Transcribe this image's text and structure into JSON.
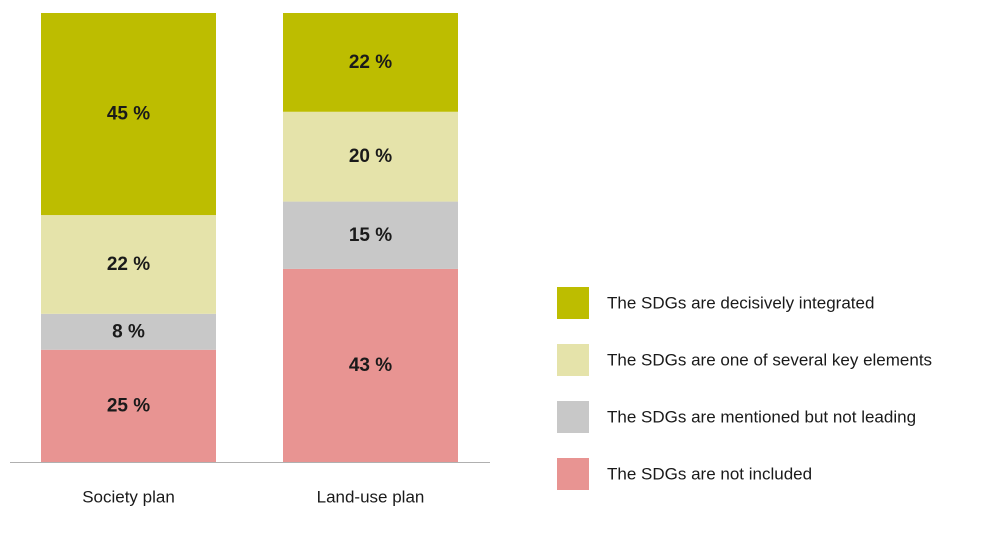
{
  "chart_data": {
    "type": "bar",
    "stacked": true,
    "categories": [
      "Society plan",
      "Land-use plan"
    ],
    "series": [
      {
        "name": "The SDGs are not included",
        "values": [
          25,
          43
        ],
        "color": "#e89492"
      },
      {
        "name": "The SDGs are mentioned but not leading",
        "values": [
          8,
          15
        ],
        "color": "#c8c8c8"
      },
      {
        "name": "The SDGs are one of several key elements",
        "values": [
          22,
          20
        ],
        "color": "#e5e3aa"
      },
      {
        "name": "The SDGs are decisively integrated",
        "values": [
          45,
          22
        ],
        "color": "#bdbd00"
      }
    ],
    "value_suffix": " %",
    "legend_position": "right",
    "legend_order": [
      3,
      2,
      1,
      0
    ],
    "title": "",
    "xlabel": "",
    "ylabel": "",
    "axis_color": "#b0b0b0"
  }
}
